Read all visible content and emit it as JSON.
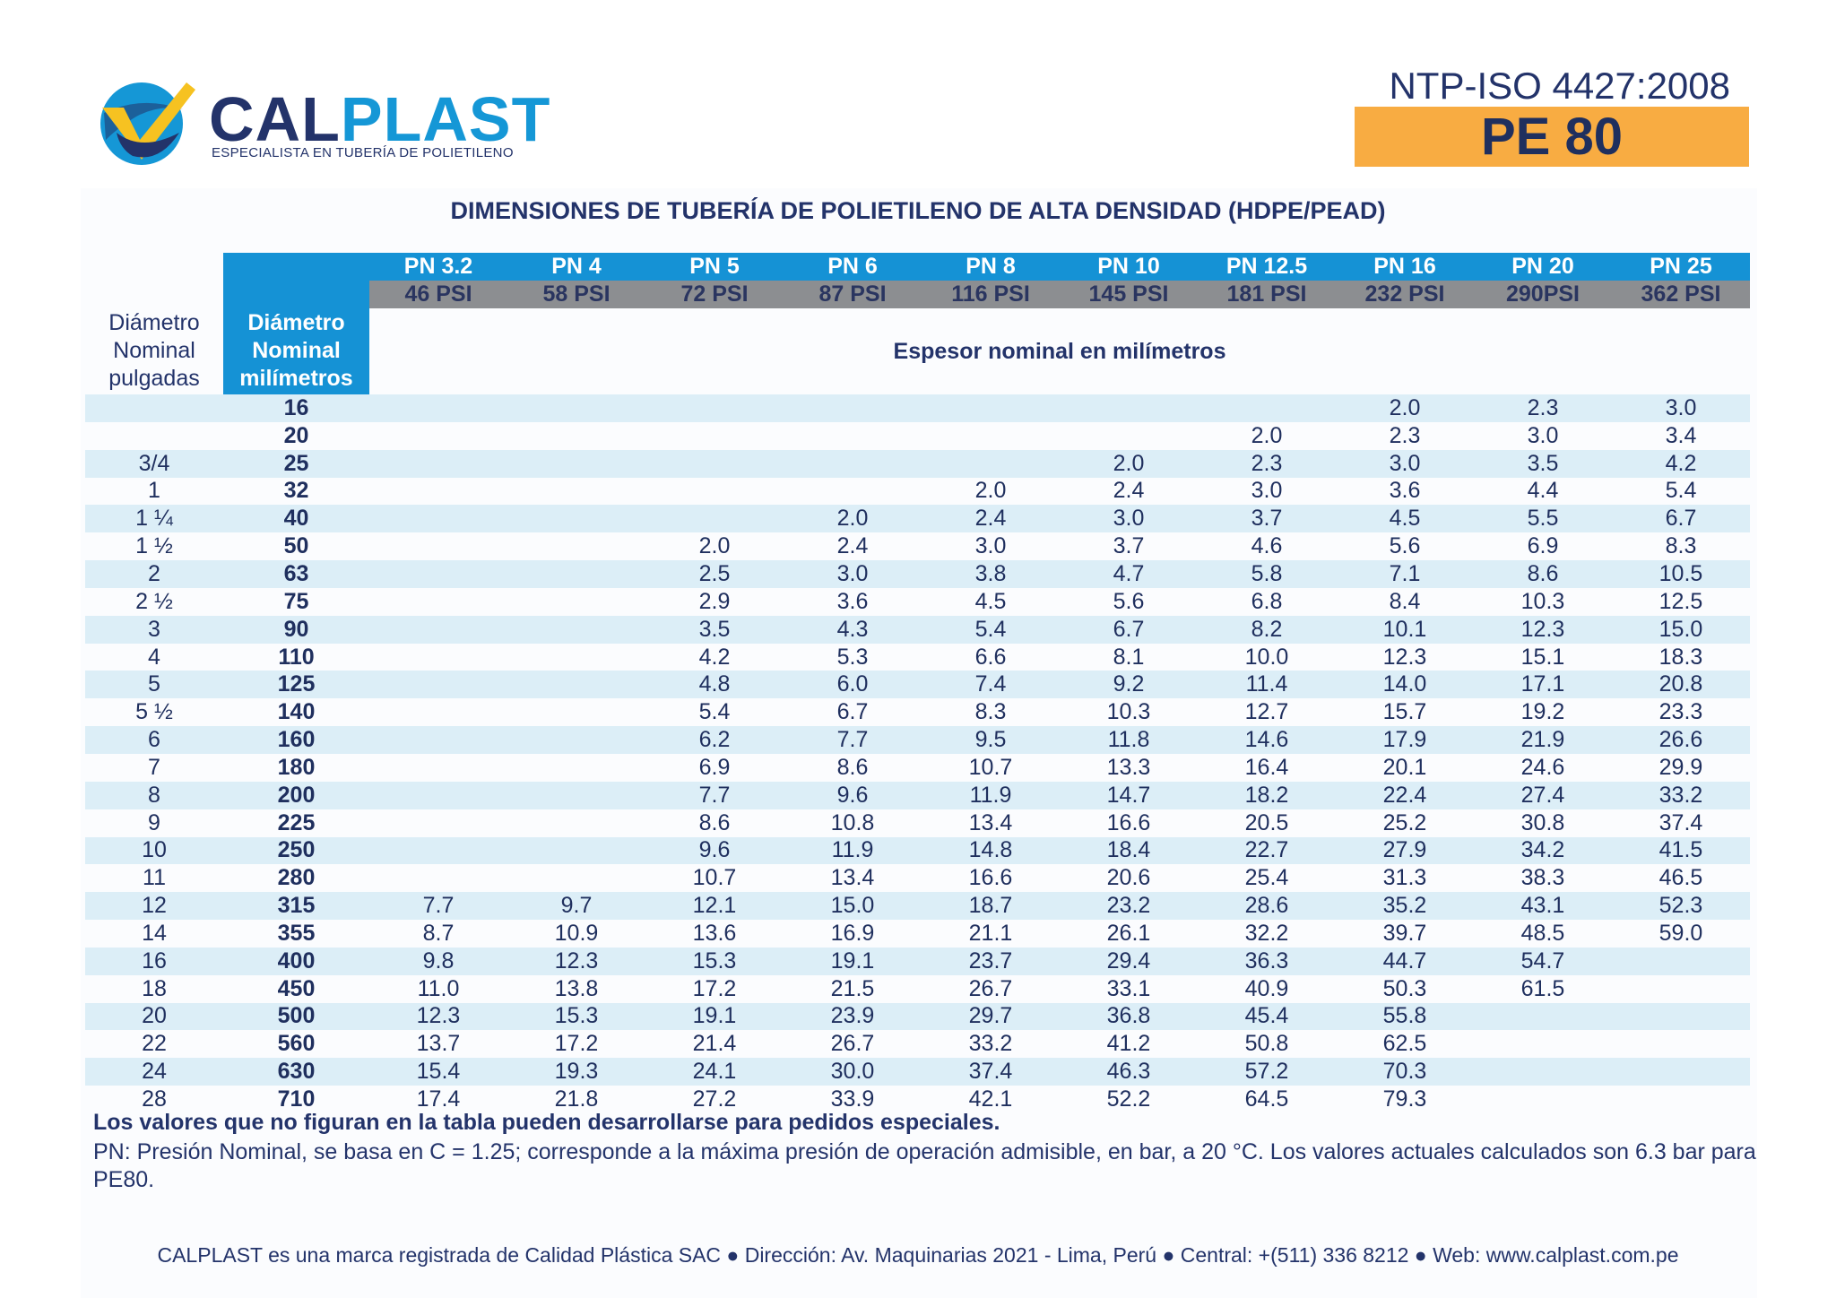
{
  "brand": {
    "name_part1": "CAL",
    "name_part2": "PLAST",
    "tagline": "ESPECIALISTA EN TUBERÍA DE POLIETILENO",
    "colors": {
      "navy": "#23336a",
      "blue": "#1597d6",
      "yellow": "#f6c221",
      "orange": "#f8ac42"
    }
  },
  "standard": "NTP-ISO 4427:2008",
  "material": "PE 80",
  "title": "DIMENSIONES DE TUBERÍA DE POLIETILENO DE ALTA DENSIDAD (HDPE/PEAD)",
  "table": {
    "col_inch_header": [
      "Diámetro",
      "Nominal",
      "pulgadas"
    ],
    "col_mm_header": [
      "Diámetro",
      "Nominal",
      "milímetros"
    ],
    "thickness_header": "Espesor nominal en milímetros",
    "pn": [
      "PN 3.2",
      "PN 4",
      "PN 5",
      "PN 6",
      "PN 8",
      "PN 10",
      "PN 12.5",
      "PN 16",
      "PN 20",
      "PN 25"
    ],
    "psi": [
      "46 PSI",
      "58 PSI",
      "72 PSI",
      "87 PSI",
      "116 PSI",
      "145 PSI",
      "181 PSI",
      "232 PSI",
      "290PSI",
      "362 PSI"
    ],
    "rows": [
      {
        "inch": "",
        "mm": "16",
        "v": [
          "",
          "",
          "",
          "",
          "",
          "",
          "",
          "2.0",
          "2.3",
          "3.0"
        ]
      },
      {
        "inch": "",
        "mm": "20",
        "v": [
          "",
          "",
          "",
          "",
          "",
          "",
          "2.0",
          "2.3",
          "3.0",
          "3.4"
        ]
      },
      {
        "inch": "3/4",
        "mm": "25",
        "v": [
          "",
          "",
          "",
          "",
          "",
          "2.0",
          "2.3",
          "3.0",
          "3.5",
          "4.2"
        ]
      },
      {
        "inch": "1",
        "mm": "32",
        "v": [
          "",
          "",
          "",
          "",
          "2.0",
          "2.4",
          "3.0",
          "3.6",
          "4.4",
          "5.4"
        ]
      },
      {
        "inch": "1 ¼",
        "mm": "40",
        "v": [
          "",
          "",
          "",
          "2.0",
          "2.4",
          "3.0",
          "3.7",
          "4.5",
          "5.5",
          "6.7"
        ]
      },
      {
        "inch": "1 ½",
        "mm": "50",
        "v": [
          "",
          "",
          "2.0",
          "2.4",
          "3.0",
          "3.7",
          "4.6",
          "5.6",
          "6.9",
          "8.3"
        ]
      },
      {
        "inch": "2",
        "mm": "63",
        "v": [
          "",
          "",
          "2.5",
          "3.0",
          "3.8",
          "4.7",
          "5.8",
          "7.1",
          "8.6",
          "10.5"
        ]
      },
      {
        "inch": "2 ½",
        "mm": "75",
        "v": [
          "",
          "",
          "2.9",
          "3.6",
          "4.5",
          "5.6",
          "6.8",
          "8.4",
          "10.3",
          "12.5"
        ]
      },
      {
        "inch": "3",
        "mm": "90",
        "v": [
          "",
          "",
          "3.5",
          "4.3",
          "5.4",
          "6.7",
          "8.2",
          "10.1",
          "12.3",
          "15.0"
        ]
      },
      {
        "inch": "4",
        "mm": "110",
        "v": [
          "",
          "",
          "4.2",
          "5.3",
          "6.6",
          "8.1",
          "10.0",
          "12.3",
          "15.1",
          "18.3"
        ]
      },
      {
        "inch": "5",
        "mm": "125",
        "v": [
          "",
          "",
          "4.8",
          "6.0",
          "7.4",
          "9.2",
          "11.4",
          "14.0",
          "17.1",
          "20.8"
        ]
      },
      {
        "inch": "5 ½",
        "mm": "140",
        "v": [
          "",
          "",
          "5.4",
          "6.7",
          "8.3",
          "10.3",
          "12.7",
          "15.7",
          "19.2",
          "23.3"
        ]
      },
      {
        "inch": "6",
        "mm": "160",
        "v": [
          "",
          "",
          "6.2",
          "7.7",
          "9.5",
          "11.8",
          "14.6",
          "17.9",
          "21.9",
          "26.6"
        ]
      },
      {
        "inch": "7",
        "mm": "180",
        "v": [
          "",
          "",
          "6.9",
          "8.6",
          "10.7",
          "13.3",
          "16.4",
          "20.1",
          "24.6",
          "29.9"
        ]
      },
      {
        "inch": "8",
        "mm": "200",
        "v": [
          "",
          "",
          "7.7",
          "9.6",
          "11.9",
          "14.7",
          "18.2",
          "22.4",
          "27.4",
          "33.2"
        ]
      },
      {
        "inch": "9",
        "mm": "225",
        "v": [
          "",
          "",
          "8.6",
          "10.8",
          "13.4",
          "16.6",
          "20.5",
          "25.2",
          "30.8",
          "37.4"
        ]
      },
      {
        "inch": "10",
        "mm": "250",
        "v": [
          "",
          "",
          "9.6",
          "11.9",
          "14.8",
          "18.4",
          "22.7",
          "27.9",
          "34.2",
          "41.5"
        ]
      },
      {
        "inch": "11",
        "mm": "280",
        "v": [
          "",
          "",
          "10.7",
          "13.4",
          "16.6",
          "20.6",
          "25.4",
          "31.3",
          "38.3",
          "46.5"
        ]
      },
      {
        "inch": "12",
        "mm": "315",
        "v": [
          "7.7",
          "9.7",
          "12.1",
          "15.0",
          "18.7",
          "23.2",
          "28.6",
          "35.2",
          "43.1",
          "52.3"
        ]
      },
      {
        "inch": "14",
        "mm": "355",
        "v": [
          "8.7",
          "10.9",
          "13.6",
          "16.9",
          "21.1",
          "26.1",
          "32.2",
          "39.7",
          "48.5",
          "59.0"
        ]
      },
      {
        "inch": "16",
        "mm": "400",
        "v": [
          "9.8",
          "12.3",
          "15.3",
          "19.1",
          "23.7",
          "29.4",
          "36.3",
          "44.7",
          "54.7",
          ""
        ]
      },
      {
        "inch": "18",
        "mm": "450",
        "v": [
          "11.0",
          "13.8",
          "17.2",
          "21.5",
          "26.7",
          "33.1",
          "40.9",
          "50.3",
          "61.5",
          ""
        ]
      },
      {
        "inch": "20",
        "mm": "500",
        "v": [
          "12.3",
          "15.3",
          "19.1",
          "23.9",
          "29.7",
          "36.8",
          "45.4",
          "55.8",
          "",
          ""
        ]
      },
      {
        "inch": "22",
        "mm": "560",
        "v": [
          "13.7",
          "17.2",
          "21.4",
          "26.7",
          "33.2",
          "41.2",
          "50.8",
          "62.5",
          "",
          ""
        ]
      },
      {
        "inch": "24",
        "mm": "630",
        "v": [
          "15.4",
          "19.3",
          "24.1",
          "30.0",
          "37.4",
          "46.3",
          "57.2",
          "70.3",
          "",
          ""
        ]
      },
      {
        "inch": "28",
        "mm": "710",
        "v": [
          "17.4",
          "21.8",
          "27.2",
          "33.9",
          "42.1",
          "52.2",
          "64.5",
          "79.3",
          "",
          ""
        ]
      }
    ]
  },
  "notes": {
    "special": "Los valores que no figuran en la tabla pueden desarrollarse para pedidos especiales.",
    "pn_definition": "PN: Presión Nominal, se basa en C = 1.25; corresponde a la máxima presión de operación admisible, en bar, a 20 °C. Los valores actuales calculados son 6.3 bar para PE80."
  },
  "footer": "CALPLAST es una marca registrada de Calidad Plástica SAC ● Dirección: Av. Maquinarias 2021 - Lima, Perú ● Central: +(511) 336 8212 ● Web: www.calplast.com.pe"
}
